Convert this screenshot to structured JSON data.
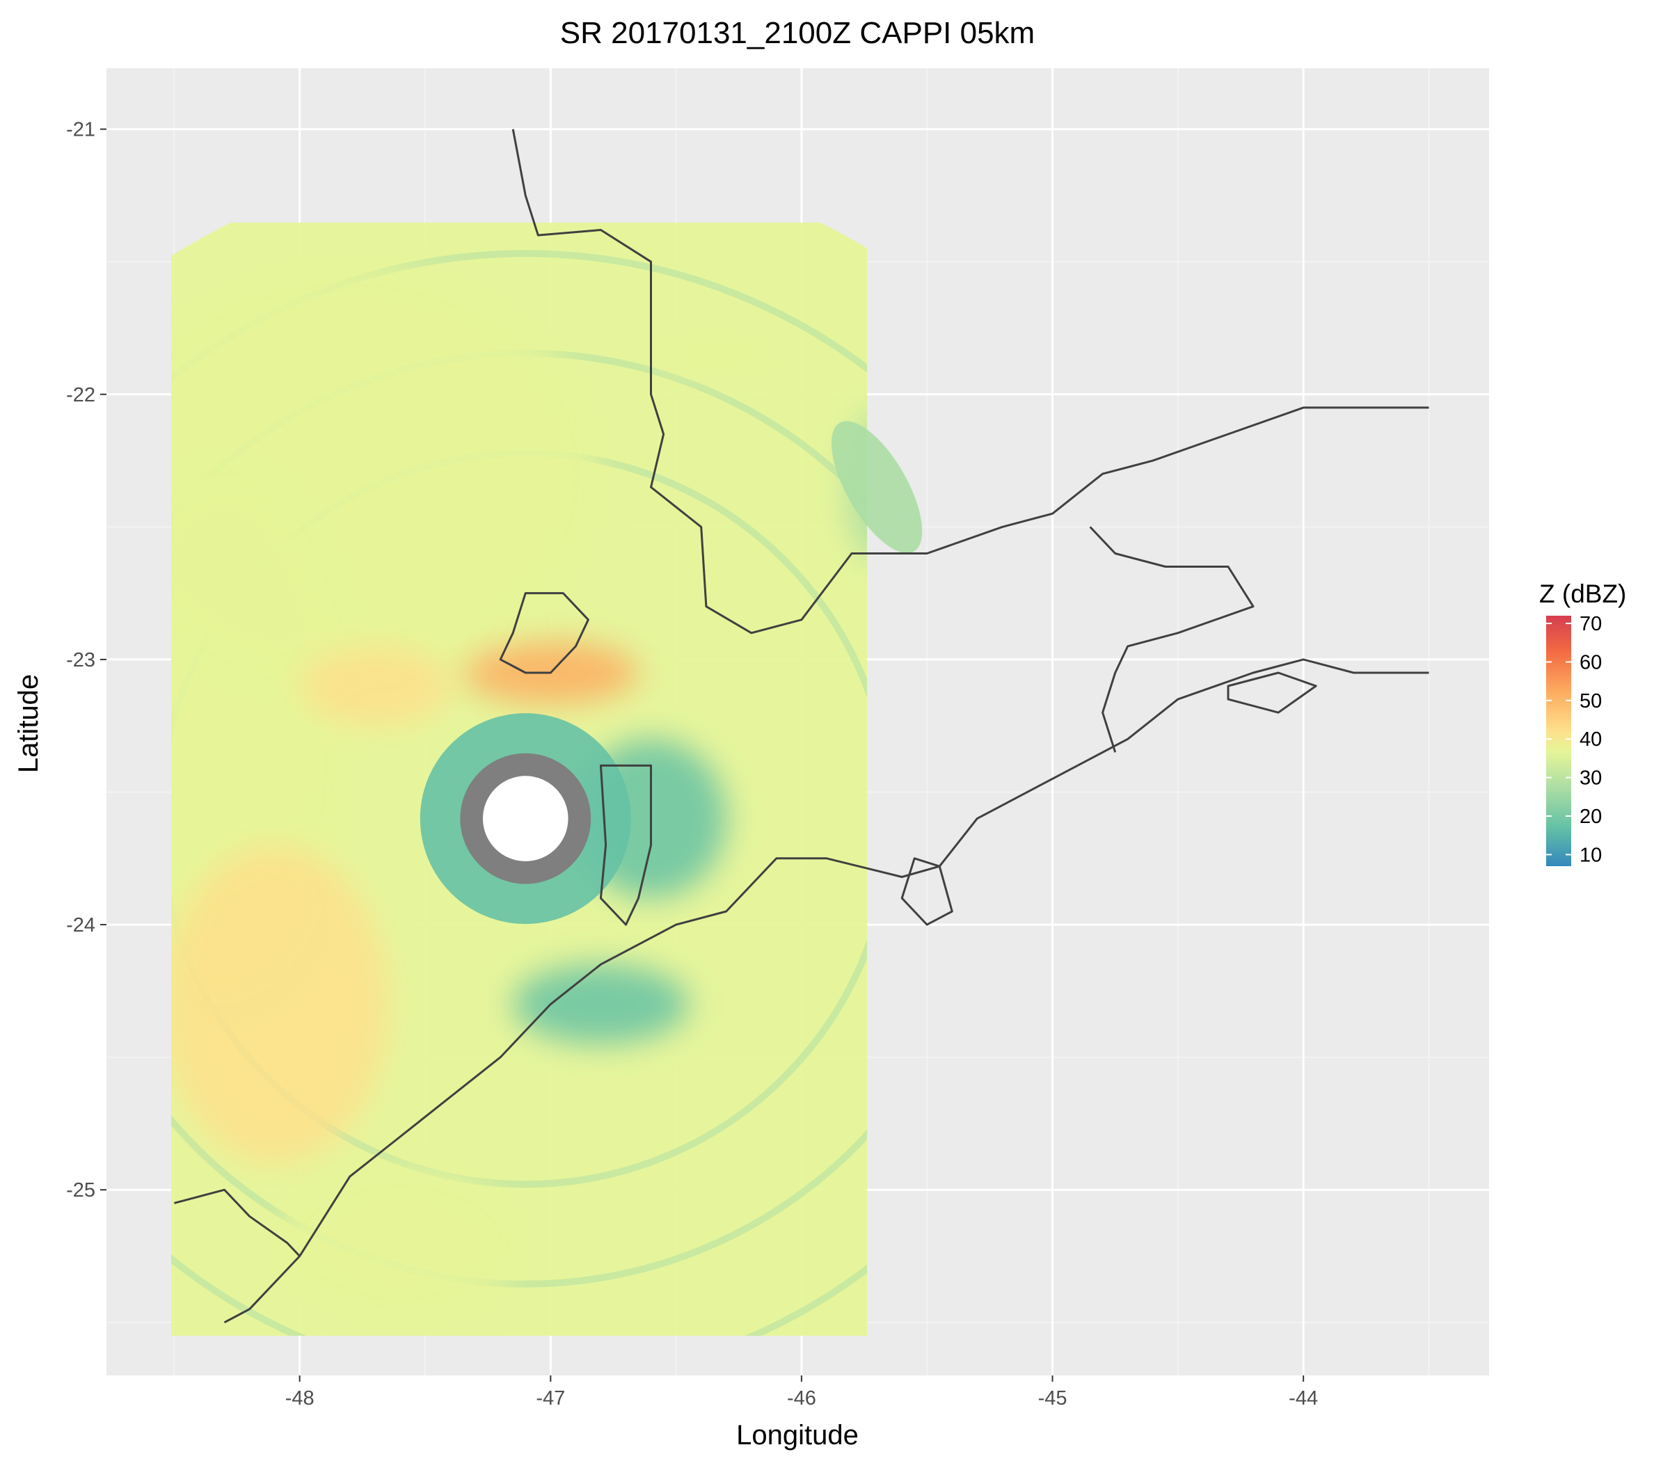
{
  "chart_data": {
    "type": "heatmap",
    "title": "SR 20170131_2100Z  CAPPI 05km",
    "xlabel": "Longitude",
    "ylabel": "Latitude",
    "xlim": [
      -48.77,
      -43.26
    ],
    "ylim": [
      -25.7,
      -20.77
    ],
    "x_ticks": [
      "-48",
      "-47",
      "-46",
      "-45",
      "-44"
    ],
    "x_tick_values": [
      -48,
      -47,
      -46,
      -45,
      -44
    ],
    "y_ticks": [
      "-21",
      "-22",
      "-23",
      "-24",
      "-25"
    ],
    "y_tick_values": [
      -21,
      -22,
      -23,
      -24,
      -25
    ],
    "x_minor_grid": [
      -48.5,
      -47.5,
      -46.5,
      -45.5,
      -44.5,
      -43.5
    ],
    "y_minor_grid": [
      -21.5,
      -22.5,
      -23.5,
      -24.5,
      -25.5
    ],
    "grid": true,
    "panel_background": "#ebebeb",
    "legend": {
      "title": "Z (dBZ)",
      "placement": "right",
      "labels": [
        "70",
        "60",
        "50",
        "40",
        "30",
        "20",
        "10"
      ],
      "values": [
        70,
        60,
        50,
        40,
        30,
        20,
        10
      ],
      "range": [
        7,
        72
      ],
      "colors": [
        "#d53e4f",
        "#f46d43",
        "#fdae61",
        "#fee08b",
        "#e6f598",
        "#abdda4",
        "#66c2a5",
        "#3288bd"
      ]
    },
    "radar_center": [
      -47.1,
      -23.6
    ],
    "radar_range_deg": 2.65,
    "no_data_radius_deg": 0.17,
    "low_reflectivity_ring_deg": 0.42,
    "colors": {
      "grid_major": "#ffffff",
      "outline": "#404040",
      "no_data_ring": "#7f7f7f"
    },
    "echo_regions": [
      {
        "center": [
          -47.8,
          -22.3
        ],
        "radii": [
          1.0,
          0.8
        ],
        "dbz": 35
      },
      {
        "center": [
          -48.3,
          -23.3
        ],
        "radii": [
          0.5,
          1.0
        ],
        "dbz": 38
      },
      {
        "center": [
          -47.0,
          -23.05
        ],
        "radii": [
          0.35,
          0.12
        ],
        "dbz": 52
      },
      {
        "center": [
          -47.7,
          -23.1
        ],
        "radii": [
          0.3,
          0.15
        ],
        "dbz": 45
      },
      {
        "center": [
          -48.1,
          -24.3
        ],
        "radii": [
          0.45,
          0.6
        ],
        "dbz": 40
      },
      {
        "center": [
          -47.6,
          -25.2
        ],
        "radii": [
          0.5,
          0.3
        ],
        "dbz": 37
      },
      {
        "center": [
          -46.6,
          -23.6
        ],
        "radii": [
          0.3,
          0.3
        ],
        "dbz": 15
      },
      {
        "center": [
          -46.8,
          -24.3
        ],
        "radii": [
          0.35,
          0.15
        ],
        "dbz": 16
      },
      {
        "center": [
          -46.35,
          -21.85
        ],
        "radii": [
          0.25,
          0.06
        ],
        "dbz": 33
      },
      {
        "center": [
          -45.7,
          -22.35
        ],
        "radii": [
          0.12,
          0.28
        ],
        "dbz": 28
      }
    ],
    "coastline": [
      [
        -48.3,
        -25.5
      ],
      [
        -48.2,
        -25.45
      ],
      [
        -48.0,
        -25.25
      ],
      [
        -47.9,
        -25.1
      ],
      [
        -47.8,
        -24.95
      ],
      [
        -47.6,
        -24.8
      ],
      [
        -47.4,
        -24.65
      ],
      [
        -47.2,
        -24.5
      ],
      [
        -47.0,
        -24.3
      ],
      [
        -46.8,
        -24.15
      ],
      [
        -46.5,
        -24.0
      ],
      [
        -46.3,
        -23.95
      ],
      [
        -46.1,
        -23.75
      ],
      [
        -45.9,
        -23.75
      ],
      [
        -45.6,
        -23.82
      ],
      [
        -45.45,
        -23.78
      ],
      [
        -45.3,
        -23.6
      ],
      [
        -45.0,
        -23.45
      ],
      [
        -44.7,
        -23.3
      ],
      [
        -44.5,
        -23.15
      ],
      [
        -44.2,
        -23.05
      ],
      [
        -44.0,
        -23.0
      ],
      [
        -43.8,
        -23.05
      ],
      [
        -43.5,
        -23.05
      ]
    ],
    "border_north": [
      [
        -47.15,
        -21.0
      ],
      [
        -47.1,
        -21.25
      ],
      [
        -47.05,
        -21.4
      ],
      [
        -46.8,
        -21.38
      ],
      [
        -46.6,
        -21.5
      ],
      [
        -46.6,
        -21.8
      ],
      [
        -46.6,
        -22.0
      ],
      [
        -46.55,
        -22.15
      ],
      [
        -46.6,
        -22.35
      ],
      [
        -46.4,
        -22.5
      ],
      [
        -46.38,
        -22.8
      ],
      [
        -46.2,
        -22.9
      ],
      [
        -46.0,
        -22.85
      ],
      [
        -45.8,
        -22.6
      ],
      [
        -45.5,
        -22.6
      ],
      [
        -45.2,
        -22.5
      ],
      [
        -45.0,
        -22.45
      ],
      [
        -44.8,
        -22.3
      ],
      [
        -44.6,
        -22.25
      ],
      [
        -44.3,
        -22.15
      ],
      [
        -44.0,
        -22.05
      ],
      [
        -43.8,
        -22.05
      ],
      [
        -43.5,
        -22.05
      ]
    ],
    "border_rj": [
      [
        -44.85,
        -22.5
      ],
      [
        -44.75,
        -22.6
      ],
      [
        -44.55,
        -22.65
      ],
      [
        -44.3,
        -22.65
      ],
      [
        -44.2,
        -22.8
      ],
      [
        -44.5,
        -22.9
      ],
      [
        -44.7,
        -22.95
      ],
      [
        -44.75,
        -23.05
      ],
      [
        -44.8,
        -23.2
      ],
      [
        -44.75,
        -23.35
      ]
    ],
    "border_south": [
      [
        -48.5,
        -25.05
      ],
      [
        -48.3,
        -25.0
      ],
      [
        -48.2,
        -25.1
      ],
      [
        -48.05,
        -25.2
      ],
      [
        -48.0,
        -25.25
      ]
    ],
    "county_polygons": [
      [
        [
          -47.1,
          -22.75
        ],
        [
          -46.95,
          -22.75
        ],
        [
          -46.85,
          -22.85
        ],
        [
          -46.9,
          -22.95
        ],
        [
          -47.0,
          -23.05
        ],
        [
          -47.1,
          -23.05
        ],
        [
          -47.2,
          -23.0
        ],
        [
          -47.15,
          -22.9
        ],
        [
          -47.1,
          -22.75
        ]
      ],
      [
        [
          -46.8,
          -23.4
        ],
        [
          -46.6,
          -23.4
        ],
        [
          -46.6,
          -23.5
        ],
        [
          -46.6,
          -23.7
        ],
        [
          -46.65,
          -23.9
        ],
        [
          -46.7,
          -24.0
        ],
        [
          -46.8,
          -23.9
        ],
        [
          -46.78,
          -23.7
        ],
        [
          -46.8,
          -23.4
        ]
      ]
    ],
    "islands": [
      [
        [
          -45.55,
          -23.75
        ],
        [
          -45.45,
          -23.78
        ],
        [
          -45.4,
          -23.95
        ],
        [
          -45.5,
          -24.0
        ],
        [
          -45.6,
          -23.9
        ],
        [
          -45.55,
          -23.75
        ]
      ],
      [
        [
          -44.3,
          -23.1
        ],
        [
          -44.1,
          -23.05
        ],
        [
          -43.95,
          -23.1
        ],
        [
          -44.1,
          -23.2
        ],
        [
          -44.3,
          -23.15
        ],
        [
          -44.3,
          -23.1
        ]
      ]
    ]
  }
}
